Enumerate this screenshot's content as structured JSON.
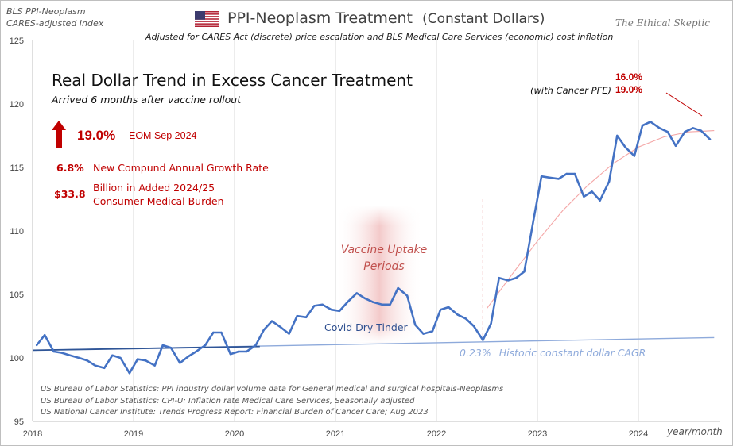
{
  "header": {
    "source_left_line1": "BLS PPI-Neoplasm",
    "source_left_line2": "CARES-adjusted Index",
    "title": "PPI-Neoplasm Treatment",
    "title_suffix": "(Constant Dollars)",
    "subtitle": "Adjusted for CARES Act (discrete)  price escalation and BLS Medical Care Services (economic) cost inflation",
    "brand": "The Ethical Skeptic"
  },
  "callouts": {
    "headline": "Real Dollar Trend in Excess Cancer Treatment",
    "headline_sub": "Arrived 6 months after vaccine rollout",
    "big_pct": "19.0%",
    "eom": "EOM Sep 2024",
    "cagr_value": "6.8%",
    "cagr_label": "New Compund Annual Growth Rate",
    "burden_value": "$33.8",
    "burden_label_line1": "Billion in Added 2024/25",
    "burden_label_line2": "Consumer Medical Burden",
    "pfe_label": "(with Cancer PFE)",
    "pfe_value_1": "16.0%",
    "pfe_value_2": "19.0%",
    "vaccine_line1": "Vaccine Uptake",
    "vaccine_line2": "Periods",
    "dry_tinder": "Covid Dry Tinder",
    "historic_value": "0.23%",
    "historic_label": "Historic constant dollar CAGR",
    "x_unit": "year/month"
  },
  "sources": [
    "US Bureau of Labor Statistics: PPI industry dollar volume data for General medical and surgical hospitals-Neoplasms",
    "US Bureau of Labor Statistics: CPI-U: Inflation rate Medical Care Services, Seasonally adjusted",
    "US National Cancer Institute: Trends Progress Report: Financial Burden of Cancer Care; Aug 2023"
  ],
  "colors": {
    "series": "#4472c4",
    "trend_pre": "#2f5597",
    "historic_cagr": "#8eaadb",
    "curve": "#f4a6a6",
    "accent_red": "#c00000",
    "vaccine_band": "#f2c4c4",
    "grid": "#d9d9d9"
  },
  "chart_data": {
    "type": "line",
    "title": "PPI-Neoplasm Treatment (Constant Dollars)",
    "xlabel": "year/month",
    "ylabel": "",
    "ylim": [
      95,
      125
    ],
    "yticks": [
      95,
      100,
      105,
      110,
      115,
      120,
      125
    ],
    "xlim": [
      2018.0,
      2024.75
    ],
    "xticks": [
      2018,
      2019,
      2020,
      2021,
      2022,
      2023,
      2024
    ],
    "grid": "vertical gridlines at years",
    "series": [
      {
        "name": "PPI-Neoplasm Treatment (Constant Dollars)",
        "x": [
          2018.04,
          2018.12,
          2018.21,
          2018.29,
          2018.37,
          2018.46,
          2018.54,
          2018.62,
          2018.71,
          2018.79,
          2018.87,
          2018.96,
          2019.04,
          2019.12,
          2019.21,
          2019.29,
          2019.37,
          2019.46,
          2019.54,
          2019.62,
          2019.71,
          2019.79,
          2019.87,
          2019.96,
          2020.04,
          2020.12,
          2020.21,
          2020.29,
          2020.37,
          2020.46,
          2020.54,
          2020.62,
          2020.71,
          2020.79,
          2020.87,
          2020.96,
          2021.04,
          2021.12,
          2021.21,
          2021.29,
          2021.37,
          2021.46,
          2021.54,
          2021.62,
          2021.71,
          2021.79,
          2021.87,
          2021.96,
          2022.04,
          2022.12,
          2022.21,
          2022.29,
          2022.37,
          2022.46,
          2022.54,
          2022.62,
          2022.71,
          2022.79,
          2022.87,
          2022.96,
          2023.04,
          2023.12,
          2023.21,
          2023.29,
          2023.37,
          2023.46,
          2023.54,
          2023.62,
          2023.71,
          2023.79,
          2023.87,
          2023.96,
          2024.04,
          2024.12,
          2024.21,
          2024.29,
          2024.37,
          2024.46,
          2024.54,
          2024.62,
          2024.71
        ],
        "values": [
          101.0,
          101.8,
          100.5,
          100.4,
          100.2,
          100.0,
          99.8,
          99.4,
          99.2,
          100.2,
          100.0,
          98.8,
          99.9,
          99.8,
          99.4,
          101.0,
          100.8,
          99.6,
          100.1,
          100.5,
          101.0,
          102.0,
          102.0,
          100.3,
          100.5,
          100.5,
          101.0,
          102.2,
          102.9,
          102.4,
          101.9,
          103.3,
          103.2,
          104.1,
          104.2,
          103.8,
          103.7,
          104.4,
          105.1,
          104.7,
          104.4,
          104.2,
          104.2,
          105.5,
          104.9,
          102.6,
          101.9,
          102.1,
          103.8,
          104.0,
          103.4,
          103.1,
          102.5,
          101.4,
          102.7,
          106.3,
          106.1,
          106.3,
          106.8,
          110.8,
          114.3,
          114.2,
          114.1,
          114.5,
          114.5,
          112.7,
          113.1,
          112.4,
          113.9,
          117.5,
          116.6,
          115.9,
          118.3,
          118.6,
          118.1,
          117.8,
          116.7,
          117.8,
          118.1,
          117.9,
          117.2
        ]
      },
      {
        "name": "Pre-2020 trend",
        "x": [
          2018.0,
          2020.25
        ],
        "values": [
          100.6,
          100.9
        ]
      },
      {
        "name": "Historic constant dollar CAGR",
        "x": [
          2018.0,
          2024.75
        ],
        "values": [
          100.6,
          101.6
        ]
      },
      {
        "name": "Excess trend fit",
        "x": [
          2022.5,
          2022.75,
          2023.0,
          2023.25,
          2023.5,
          2023.75,
          2024.0,
          2024.25,
          2024.5,
          2024.75
        ],
        "values": [
          103.9,
          106.6,
          109.2,
          111.6,
          113.6,
          115.3,
          116.6,
          117.4,
          117.8,
          117.9
        ]
      }
    ],
    "vaccine_band": [
      2021.0,
      2021.87
    ],
    "event_marker_x": 2022.46,
    "annotations": [
      "Vaccine Uptake Periods",
      "Covid Dry Tinder",
      "0.23%  Historic constant dollar CAGR",
      "(with Cancer PFE) 16.0% 19.0%"
    ]
  }
}
